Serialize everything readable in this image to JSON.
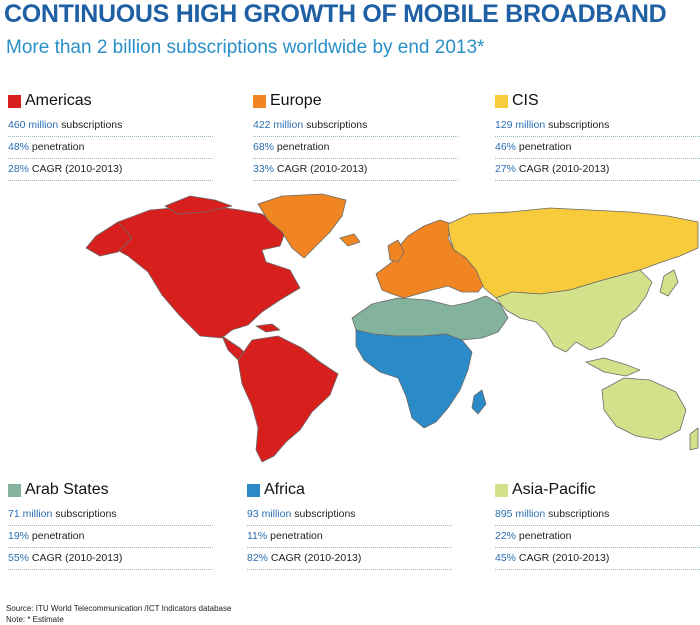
{
  "header": {
    "title": "CONTINUOUS HIGH GROWTH OF MOBILE BROADBAND",
    "subtitle": "More than 2 billion subscriptions worldwide by end 2013*"
  },
  "regions": [
    {
      "name": "Americas",
      "color": "#d7201e",
      "subs_num": "460 million",
      "subs_text": " subscriptions",
      "pen_num": "48%",
      "pen_text": " penetration",
      "cagr_num": "28%",
      "cagr_text": " CAGR (2010-2013)"
    },
    {
      "name": "Europe",
      "color": "#f08522",
      "subs_num": "422 million",
      "subs_text": " subscriptions",
      "pen_num": "68%",
      "pen_text": " penetration",
      "cagr_num": "33%",
      "cagr_text": " CAGR (2010-2013)"
    },
    {
      "name": "CIS",
      "color": "#f7cb3c",
      "subs_num": "129 million",
      "subs_text": " subscriptions",
      "pen_num": "46%",
      "pen_text": " penetration",
      "cagr_num": "27%",
      "cagr_text": " CAGR (2010-2013)"
    },
    {
      "name": "Arab States",
      "color": "#84b39d",
      "subs_num": "71 million",
      "subs_text": " subscriptions",
      "pen_num": "19%",
      "pen_text": " penetration",
      "cagr_num": "55%",
      "cagr_text": " CAGR (2010-2013)"
    },
    {
      "name": "Africa",
      "color": "#2b8ac8",
      "subs_num": "93 million",
      "subs_text": " subscriptions",
      "pen_num": "11%",
      "pen_text": " penetration",
      "cagr_num": "82%",
      "cagr_text": " CAGR (2010-2013)"
    },
    {
      "name": "Asia-Pacific",
      "color": "#d3e28a",
      "subs_num": "895 million",
      "subs_text": " subscriptions",
      "pen_num": "22%",
      "pen_text": " penetration",
      "cagr_num": "45%",
      "cagr_text": " CAGR (2010-2013)"
    }
  ],
  "footer": {
    "source": "Source:  ITU World Telecommunication /ICT Indicators database",
    "note": "Note: * Estimate"
  }
}
